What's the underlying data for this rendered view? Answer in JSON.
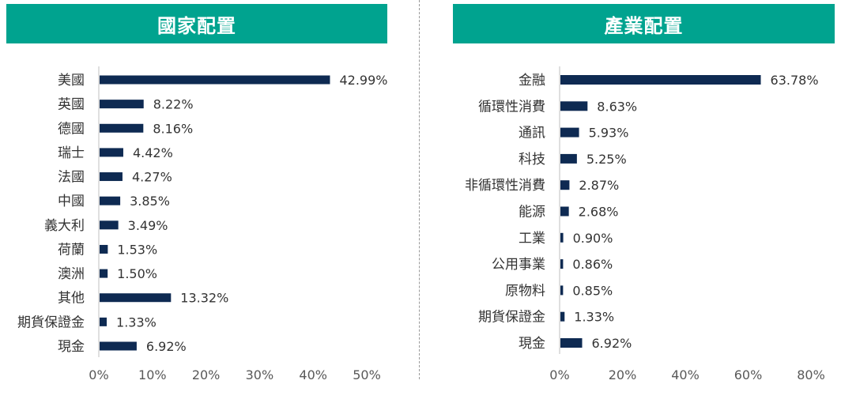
{
  "chart_data": [
    {
      "type": "bar",
      "orientation": "horizontal",
      "title": "國家配置",
      "categories": [
        "美國",
        "英國",
        "德國",
        "瑞士",
        "法國",
        "中國",
        "義大利",
        "荷蘭",
        "澳洲",
        "其他",
        "期貨保證金",
        "現金"
      ],
      "values": [
        42.99,
        8.22,
        8.16,
        4.42,
        4.27,
        3.85,
        3.49,
        1.53,
        1.5,
        13.32,
        1.33,
        6.92
      ],
      "value_labels": [
        "42.99%",
        "8.22%",
        "8.16%",
        "4.42%",
        "4.27%",
        "3.85%",
        "3.49%",
        "1.53%",
        "1.50%",
        "13.32%",
        "1.33%",
        "6.92%"
      ],
      "xlim": [
        0,
        50
      ],
      "xticks": [
        0,
        10,
        20,
        30,
        40,
        50
      ],
      "xtick_labels": [
        "0%",
        "10%",
        "20%",
        "30%",
        "40%",
        "50%"
      ],
      "grid": false,
      "legend": "none",
      "bar_color": "#0e2a52",
      "header_color": "#00a38f"
    },
    {
      "type": "bar",
      "orientation": "horizontal",
      "title": "產業配置",
      "categories": [
        "金融",
        "循環性消費",
        "通訊",
        "科技",
        "非循環性消費",
        "能源",
        "工業",
        "公用事業",
        "原物料",
        "期貨保證金",
        "現金"
      ],
      "values": [
        63.78,
        8.63,
        5.93,
        5.25,
        2.87,
        2.68,
        0.9,
        0.86,
        0.85,
        1.33,
        6.92
      ],
      "value_labels": [
        "63.78%",
        "8.63%",
        "5.93%",
        "5.25%",
        "2.87%",
        "2.68%",
        "0.90%",
        "0.86%",
        "0.85%",
        "1.33%",
        "6.92%"
      ],
      "xlim": [
        0,
        80
      ],
      "xticks": [
        0,
        20,
        40,
        60,
        80
      ],
      "xtick_labels": [
        "0%",
        "20%",
        "40%",
        "60%",
        "80%"
      ],
      "grid": false,
      "legend": "none",
      "bar_color": "#0e2a52",
      "header_color": "#00a38f"
    }
  ]
}
